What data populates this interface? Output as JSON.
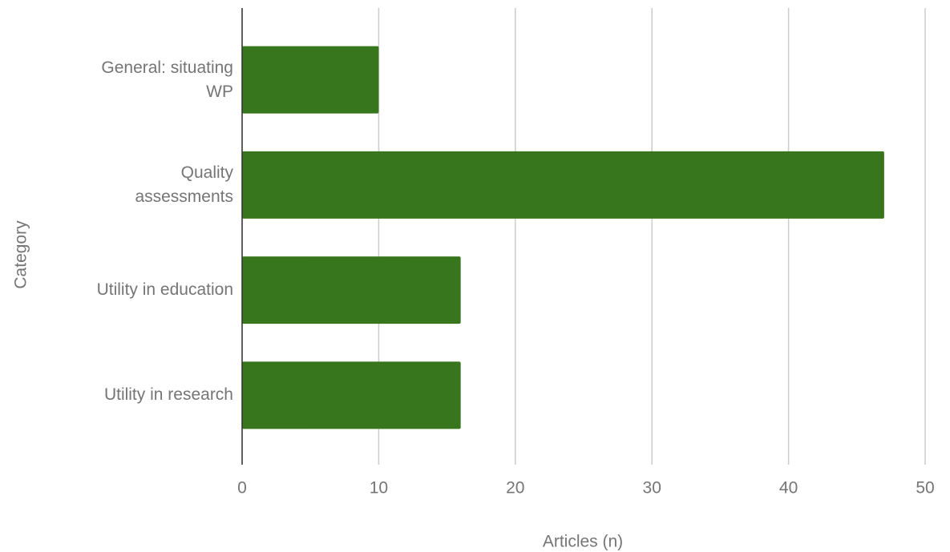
{
  "chart_data": {
    "type": "bar",
    "orientation": "horizontal",
    "categories": [
      "General: situating WP",
      "Quality assessments",
      "Utility in education",
      "Utility in research"
    ],
    "values": [
      10,
      47,
      16,
      16
    ],
    "color": "#38761d",
    "xlabel": "Articles (n)",
    "ylabel": "Category",
    "xlim": [
      0,
      50
    ],
    "xticks": [
      0,
      10,
      20,
      30,
      40,
      50
    ],
    "grid": true
  }
}
